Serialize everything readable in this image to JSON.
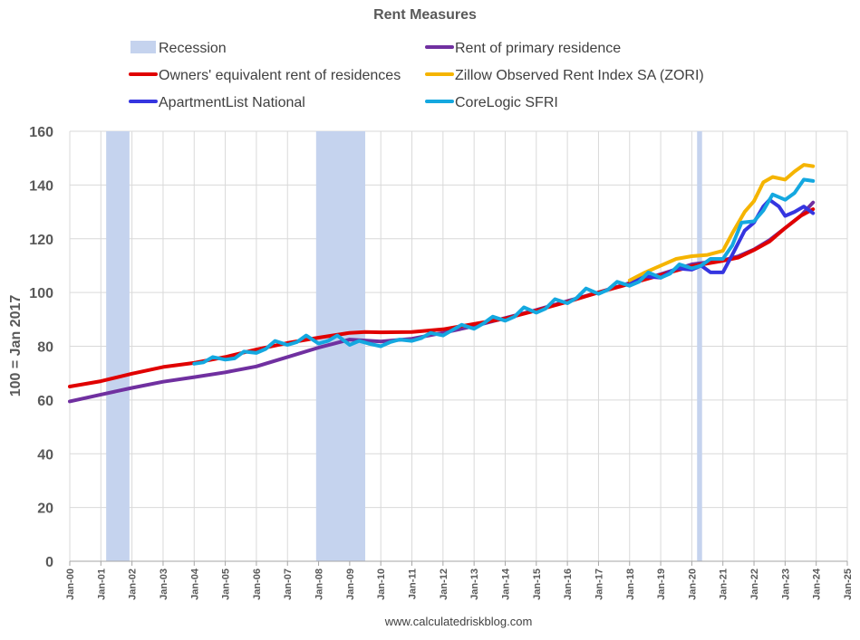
{
  "chart_data": {
    "type": "line",
    "title": "Rent Measures",
    "ylabel": "100 = Jan 2017",
    "xlabel": "",
    "source": "www.calculatedriskblog.com",
    "ylim": [
      0,
      160
    ],
    "yticks": [
      0,
      20,
      40,
      60,
      80,
      100,
      120,
      140,
      160
    ],
    "xlim": [
      2000,
      2025
    ],
    "xticks": [
      "Jan-00",
      "Jan-01",
      "Jan-02",
      "Jan-03",
      "Jan-04",
      "Jan-05",
      "Jan-06",
      "Jan-07",
      "Jan-08",
      "Jan-09",
      "Jan-10",
      "Jan-11",
      "Jan-12",
      "Jan-13",
      "Jan-14",
      "Jan-15",
      "Jan-16",
      "Jan-17",
      "Jan-18",
      "Jan-19",
      "Jan-20",
      "Jan-21",
      "Jan-22",
      "Jan-23",
      "Jan-24",
      "Jan-25"
    ],
    "recession_label": "Recession",
    "recession_color": "#c5d3ee",
    "recessions": [
      [
        2001.17,
        2001.92
      ],
      [
        2007.92,
        2009.5
      ],
      [
        2020.17,
        2020.33
      ]
    ],
    "series": [
      {
        "name": "Rent of primary residence",
        "color": "#7030a0",
        "x": [
          2000,
          2001,
          2002,
          2003,
          2004,
          2005,
          2006,
          2007,
          2008,
          2009,
          2010,
          2011,
          2012,
          2013,
          2014,
          2015,
          2016,
          2017,
          2018,
          2019,
          2020,
          2021,
          2021.5,
          2022,
          2022.5,
          2023,
          2023.5,
          2023.9
        ],
        "y": [
          59.5,
          62,
          64.5,
          66.8,
          68.5,
          70.3,
          72.5,
          76,
          79.5,
          82.5,
          81.8,
          82.8,
          85,
          87.5,
          90.5,
          93.5,
          96.8,
          100,
          103.5,
          106.8,
          110.5,
          112,
          113.5,
          116,
          119.5,
          124,
          128.5,
          133.5
        ]
      },
      {
        "name": "Owners' equivalent rent of residences",
        "color": "#e00000",
        "x": [
          2000,
          2001,
          2002,
          2003,
          2004,
          2005,
          2006,
          2007,
          2008,
          2009,
          2009.5,
          2010,
          2011,
          2012,
          2013,
          2014,
          2015,
          2016,
          2017,
          2018,
          2019,
          2020,
          2021,
          2021.5,
          2022,
          2022.5,
          2023,
          2023.5,
          2023.9
        ],
        "y": [
          65,
          67,
          69.8,
          72.3,
          73.8,
          76,
          78.8,
          81.2,
          83.2,
          85,
          85.3,
          85.2,
          85.3,
          86.3,
          88.3,
          90.3,
          93.3,
          96.5,
          100,
          103.2,
          106.5,
          109.8,
          111.8,
          113,
          115.8,
          119,
          124,
          128.5,
          131
        ]
      },
      {
        "name": "Zillow Observed Rent Index SA (ZORI)",
        "color": "#f5b400",
        "x": [
          2018,
          2018.5,
          2019,
          2019.5,
          2020,
          2020.5,
          2021,
          2021.3,
          2021.7,
          2022,
          2022.3,
          2022.6,
          2023,
          2023.3,
          2023.6,
          2023.9
        ],
        "y": [
          104.5,
          107.5,
          110,
          112.5,
          113.5,
          114,
          115.5,
          122,
          130,
          134,
          141,
          143,
          142,
          145,
          147.5,
          147
        ]
      },
      {
        "name": "ApartmentList National",
        "color": "#3535e0",
        "x": [
          2018,
          2018.5,
          2019,
          2019.5,
          2020,
          2020.3,
          2020.6,
          2021,
          2021.3,
          2021.7,
          2022,
          2022.3,
          2022.5,
          2022.8,
          2023,
          2023.3,
          2023.6,
          2023.9
        ],
        "y": [
          103,
          106,
          105.5,
          109,
          108.5,
          110,
          107.5,
          107.5,
          114,
          123,
          126,
          132,
          134.5,
          132,
          128.5,
          130,
          132,
          129.5
        ]
      },
      {
        "name": "CoreLogic SFRI",
        "color": "#14a8e0",
        "x": [
          2004,
          2004.3,
          2004.6,
          2005,
          2005.3,
          2005.6,
          2006,
          2006.3,
          2006.6,
          2007,
          2007.3,
          2007.6,
          2008,
          2008.3,
          2008.6,
          2009,
          2009.3,
          2009.6,
          2010,
          2010.3,
          2010.6,
          2011,
          2011.3,
          2011.6,
          2012,
          2012.3,
          2012.6,
          2013,
          2013.3,
          2013.6,
          2014,
          2014.3,
          2014.6,
          2015,
          2015.3,
          2015.6,
          2016,
          2016.3,
          2016.6,
          2017,
          2017.3,
          2017.6,
          2018,
          2018.3,
          2018.6,
          2019,
          2019.3,
          2019.6,
          2020,
          2020.3,
          2020.6,
          2021,
          2021.3,
          2021.6,
          2022,
          2022.3,
          2022.6,
          2023,
          2023.3,
          2023.6,
          2023.9
        ],
        "y": [
          73.5,
          74,
          76,
          75,
          75.5,
          78,
          77.5,
          79,
          82,
          80.5,
          81.5,
          84,
          81,
          82,
          84,
          80.5,
          82,
          81,
          80,
          81.5,
          82.5,
          82,
          83,
          85,
          84,
          86,
          88,
          86.5,
          88.5,
          91,
          89.5,
          91,
          94.5,
          92.5,
          94,
          97.5,
          96,
          98,
          101.5,
          99.5,
          101,
          104,
          102.5,
          104,
          107.5,
          105.5,
          107,
          110.5,
          109,
          110,
          112.5,
          112.5,
          117.5,
          126,
          126.5,
          130.5,
          136.5,
          134.5,
          137,
          142,
          141.5
        ]
      }
    ]
  }
}
